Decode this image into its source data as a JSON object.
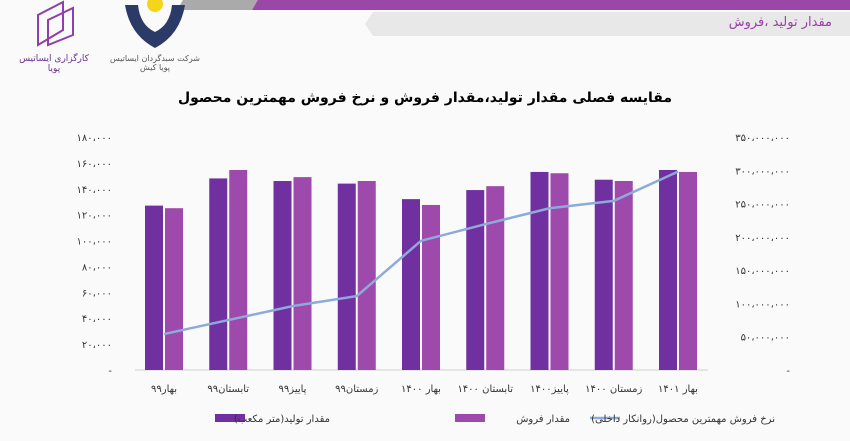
{
  "header": {
    "subtitle": "مقدار تولید ،فروش"
  },
  "logos": {
    "left": "کارگزاری ایساتیس پویا",
    "right": "شرکت سبدگردان ایساتیس پویا کیش"
  },
  "chart_data": {
    "type": "bar",
    "title": "مقایسه فصلی مقدار تولید،مقدار فروش و نرخ فروش مهمترین محصول",
    "categories": [
      "بهار۹۹",
      "تابستان۹۹",
      "پاییز۹۹",
      "زمستان۹۹",
      "بهار ۱۴۰۰",
      "تابستان ۱۴۰۰",
      "پاییز۱۴۰۰",
      "زمستان ۱۴۰۰",
      "بهار ۱۴۰۱"
    ],
    "series": [
      {
        "name": "مقدار تولید(متر مکعب)",
        "type": "bar",
        "axis": "left",
        "color": "#7030a0",
        "values": [
          127000,
          148000,
          146000,
          144000,
          132000,
          139000,
          153000,
          147000,
          154500
        ]
      },
      {
        "name": "مقدار فروش",
        "type": "bar",
        "axis": "left",
        "color": "#9e4aac",
        "values": [
          125000,
          154500,
          149000,
          146000,
          127500,
          142000,
          152000,
          146000,
          153000
        ]
      },
      {
        "name": "نرخ فروش مهمترین محصول(روانکار داخلی)",
        "type": "line",
        "axis": "right",
        "color": "#8eaadb",
        "values": [
          54000000,
          75000000,
          96000000,
          111000000,
          194000000,
          219000000,
          243000000,
          254000000,
          298000000
        ]
      }
    ],
    "left_axis": {
      "ylim": [
        0,
        180000
      ],
      "ticks": [
        "-",
        "۲۰،۰۰۰",
        "۴۰،۰۰۰",
        "۶۰،۰۰۰",
        "۸۰،۰۰۰",
        "۱۰۰،۰۰۰",
        "۱۲۰،۰۰۰",
        "۱۴۰،۰۰۰",
        "۱۶۰،۰۰۰",
        "۱۸۰،۰۰۰"
      ]
    },
    "right_axis": {
      "ylim": [
        0,
        350000000
      ],
      "ticks": [
        "-",
        "۵۰،۰۰۰،۰۰۰",
        "۱۰۰،۰۰۰،۰۰۰",
        "۱۵۰،۰۰۰،۰۰۰",
        "۲۰۰،۰۰۰،۰۰۰",
        "۲۵۰،۰۰۰،۰۰۰",
        "۳۰۰،۰۰۰،۰۰۰",
        "۳۵۰،۰۰۰،۰۰۰"
      ]
    },
    "grid": false,
    "legend": "bottom"
  }
}
